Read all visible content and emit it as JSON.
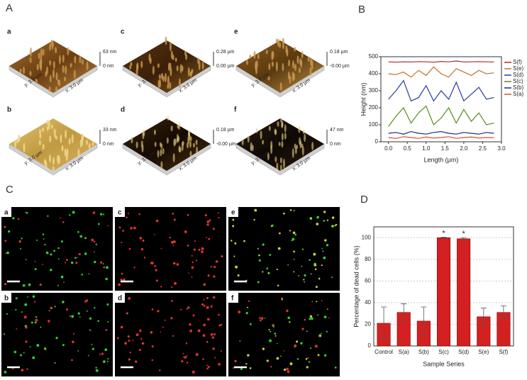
{
  "panels": {
    "A": "A",
    "B": "B",
    "C": "C",
    "D": "D"
  },
  "afm": [
    {
      "label": "a",
      "top": "63 nm",
      "bottom": "0 nm",
      "y_axis": "y: 3.0 µm",
      "x_axis": "x: 3.0 µm"
    },
    {
      "label": "c",
      "top": "0.28 µm",
      "bottom": "0.00 µm",
      "y_axis": "y: 3.0 µm",
      "x_axis": "x: 3.0 µm"
    },
    {
      "label": "e",
      "top": "0.18 µm",
      "bottom": "-0.00 µm",
      "y_axis": "y: 3.0 µm",
      "x_axis": "x: 3.0 µm"
    },
    {
      "label": "b",
      "top": "33 nm",
      "bottom": "0 nm",
      "y_axis": "y: 3.0 µm",
      "x_axis": "x: 3.0 µm"
    },
    {
      "label": "d",
      "top": "0.18 µm",
      "bottom": "-0.00 µm",
      "y_axis": "y: 3.0 µm",
      "x_axis": "x: 3.0 µm"
    },
    {
      "label": "f",
      "top": "47 nm",
      "bottom": "0 nm",
      "y_axis": "y: 3.0 µm",
      "x_axis": "x: 3.0 µm"
    }
  ],
  "fluorescence": [
    {
      "label": "a"
    },
    {
      "label": "c"
    },
    {
      "label": "e"
    },
    {
      "label": "b"
    },
    {
      "label": "d"
    },
    {
      "label": "f"
    }
  ],
  "chart_data": [
    {
      "type": "line",
      "x_label": "Length (μm)",
      "y_label": "Height (nm)",
      "x": [
        0,
        0.2,
        0.4,
        0.6,
        0.8,
        1.0,
        1.2,
        1.4,
        1.6,
        1.8,
        2.0,
        2.2,
        2.4,
        2.6,
        2.8
      ],
      "xlim": [
        -0.2,
        3.0
      ],
      "xticks": [
        {
          "value": 0,
          "label": "0.0"
        },
        {
          "value": 0.5,
          "label": "0.5"
        },
        {
          "value": 1,
          "label": "1.0"
        },
        {
          "value": 1.5,
          "label": "1.5"
        },
        {
          "value": 2,
          "label": "2.0"
        },
        {
          "value": 2.5,
          "label": "2.5"
        },
        {
          "value": 3,
          "label": "3.0"
        }
      ],
      "ylim": [
        0,
        500
      ],
      "yticks": [
        0,
        100,
        200,
        300,
        400,
        500
      ],
      "series": [
        {
          "name": "S(f)",
          "color": "#b0282a",
          "values": [
            470,
            468,
            470,
            469,
            471,
            470,
            468,
            472,
            470,
            475,
            469,
            470,
            471,
            470,
            469
          ]
        },
        {
          "name": "S(e)",
          "color": "#c8702a",
          "values": [
            400,
            395,
            410,
            380,
            420,
            390,
            440,
            400,
            380,
            430,
            410,
            390,
            420,
            400,
            405
          ]
        },
        {
          "name": "S(d)",
          "color": "#2a3aa0",
          "values": [
            250,
            300,
            360,
            240,
            260,
            330,
            240,
            300,
            250,
            350,
            240,
            280,
            320,
            250,
            260
          ]
        },
        {
          "name": "S(c)",
          "color": "#5a8a20",
          "values": [
            90,
            150,
            200,
            110,
            170,
            210,
            100,
            140,
            200,
            110,
            190,
            120,
            170,
            100,
            110
          ]
        },
        {
          "name": "S(b)",
          "color": "#1a2a80",
          "values": [
            50,
            55,
            45,
            60,
            50,
            45,
            55,
            60,
            50,
            45,
            55,
            50,
            45,
            55,
            50
          ]
        },
        {
          "name": "S(a)",
          "color": "#e04a2a",
          "values": [
            25,
            20,
            30,
            25,
            20,
            28,
            22,
            25,
            30,
            20,
            25,
            28,
            22,
            25,
            24
          ]
        }
      ]
    },
    {
      "type": "bar",
      "x_label": "Sample Series",
      "y_label": "Percentage of dead cells (%)",
      "categories": [
        "Control",
        "S(a)",
        "S(b)",
        "S(c)",
        "S(d)",
        "S(e)",
        "S(f)"
      ],
      "values": [
        21,
        31,
        23,
        100,
        99,
        27,
        31
      ],
      "errors": [
        15,
        8,
        13,
        0.5,
        1,
        8,
        6
      ],
      "color": "#d42020",
      "ylim": [
        0,
        110
      ],
      "yticks": [
        0,
        20,
        40,
        60,
        80,
        100
      ],
      "grid": true,
      "annotations": [
        {
          "text": "*",
          "x": "S(c)"
        },
        {
          "text": "*",
          "x": "S(d)"
        }
      ]
    }
  ]
}
